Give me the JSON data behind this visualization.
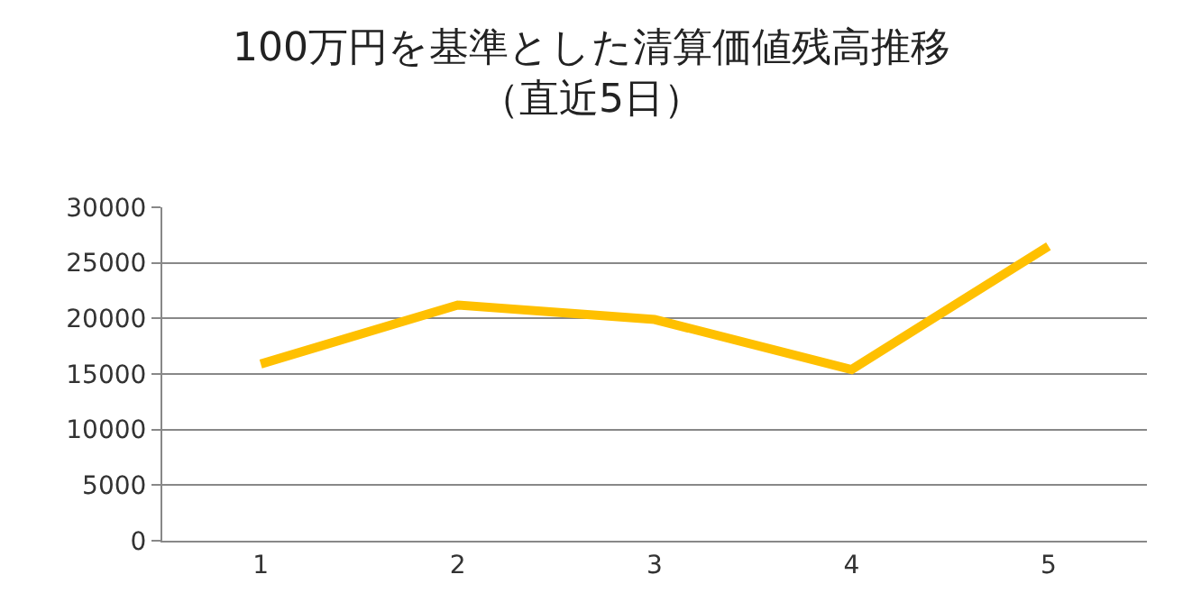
{
  "chart_data": {
    "type": "line",
    "title": "100万円を基準とした清算価値残高推移",
    "subtitle": "（直近5日）",
    "categories": [
      "1",
      "2",
      "3",
      "4",
      "5"
    ],
    "series": [
      {
        "color": "#ffc000",
        "values": [
          15900,
          21200,
          19900,
          15400,
          26500
        ]
      }
    ],
    "ylim": [
      0,
      30000
    ],
    "yticks": [
      0,
      5000,
      10000,
      15000,
      20000,
      25000,
      30000
    ],
    "grid": "y",
    "legend": false,
    "marker": "none",
    "line_style": "solid"
  }
}
